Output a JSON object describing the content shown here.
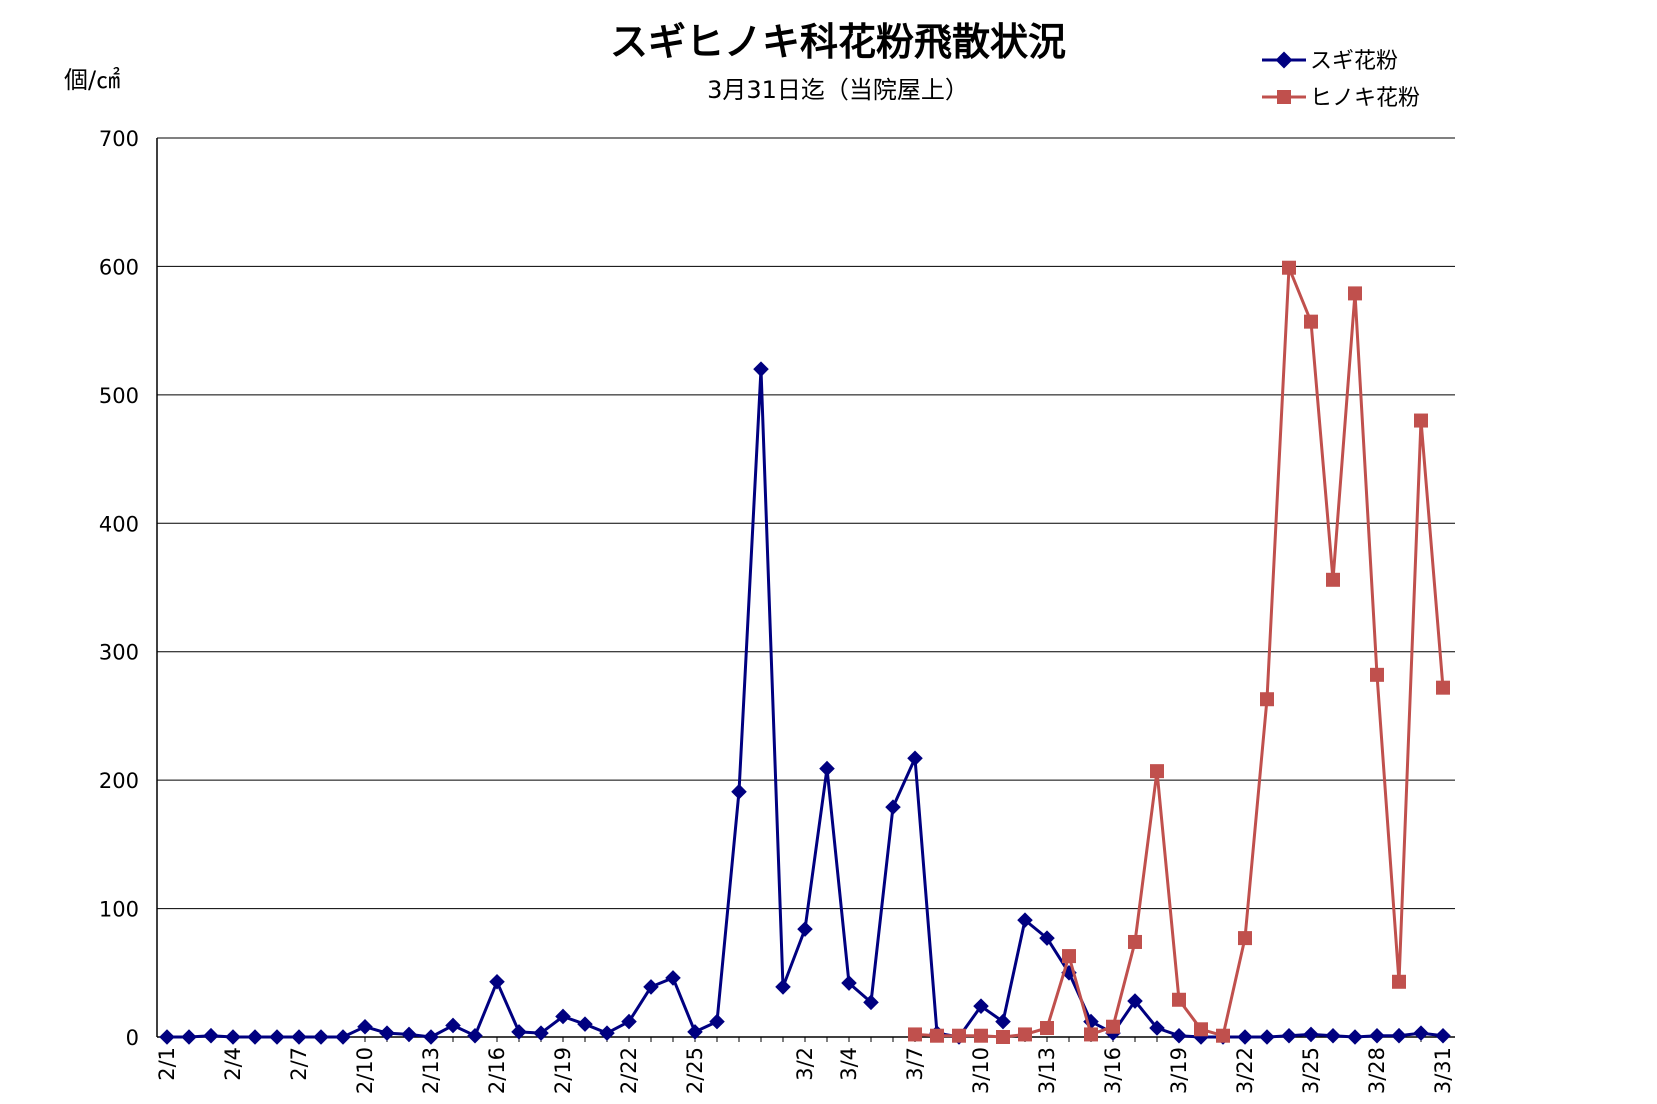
{
  "chart_data": {
    "type": "line",
    "title": "スギヒノキ科花粉飛散状況",
    "subtitle": "3月31日迄（当院屋上）",
    "ylabel": "個/㎠",
    "xlabel": "",
    "ylim": [
      0,
      700
    ],
    "yticks": [
      0,
      100,
      200,
      300,
      400,
      500,
      600,
      700
    ],
    "grid": true,
    "legend_position": "top-right",
    "x_dates": [
      "2/1",
      "2/2",
      "2/3",
      "2/4",
      "2/5",
      "2/6",
      "2/7",
      "2/8",
      "2/9",
      "2/10",
      "2/11",
      "2/12",
      "2/13",
      "2/14",
      "2/15",
      "2/16",
      "2/17",
      "2/18",
      "2/19",
      "2/20",
      "2/21",
      "2/22",
      "2/23",
      "2/24",
      "2/25",
      "2/26",
      "2/27",
      "2/28",
      "3/1",
      "3/2",
      "3/3",
      "3/4",
      "3/5",
      "3/6",
      "3/7",
      "3/8",
      "3/9",
      "3/10",
      "3/11",
      "3/12",
      "3/13",
      "3/14",
      "3/15",
      "3/16",
      "3/17",
      "3/18",
      "3/19",
      "3/20",
      "3/21",
      "3/22",
      "3/23",
      "3/24",
      "3/25",
      "3/26",
      "3/27",
      "3/28",
      "3/29",
      "3/30",
      "3/31"
    ],
    "x_tick_labels": [
      "2/1",
      "2/4",
      "2/7",
      "2/10",
      "2/13",
      "2/16",
      "2/19",
      "2/22",
      "2/25",
      "3/2",
      "3/4",
      "3/7",
      "3/10",
      "3/13",
      "3/16",
      "3/19",
      "3/22",
      "3/25",
      "3/28",
      "3/31"
    ],
    "series": [
      {
        "name": "スギ花粉",
        "color": "#000080",
        "marker": "diamond",
        "values": [
          0,
          0,
          1,
          0,
          0,
          0,
          0,
          0,
          0,
          8,
          3,
          2,
          0,
          9,
          1,
          43,
          4,
          3,
          16,
          10,
          3,
          12,
          39,
          46,
          4,
          12,
          191,
          520,
          39,
          84,
          209,
          42,
          27,
          179,
          217,
          3,
          0,
          24,
          12,
          91,
          77,
          50,
          12,
          3,
          28,
          7,
          1,
          0,
          0,
          0,
          0,
          1,
          2,
          1,
          0,
          1,
          1,
          3,
          1
        ]
      },
      {
        "name": "ヒノキ花粉",
        "color": "#c0504d",
        "marker": "square",
        "values": [
          null,
          null,
          null,
          null,
          null,
          null,
          null,
          null,
          null,
          null,
          null,
          null,
          null,
          null,
          null,
          null,
          null,
          null,
          null,
          null,
          null,
          null,
          null,
          null,
          null,
          null,
          null,
          null,
          null,
          null,
          null,
          null,
          null,
          null,
          2,
          1,
          1,
          1,
          0,
          2,
          7,
          63,
          2,
          8,
          74,
          207,
          29,
          6,
          1,
          77,
          263,
          599,
          557,
          356,
          579,
          282,
          43,
          480,
          272
        ]
      }
    ]
  }
}
